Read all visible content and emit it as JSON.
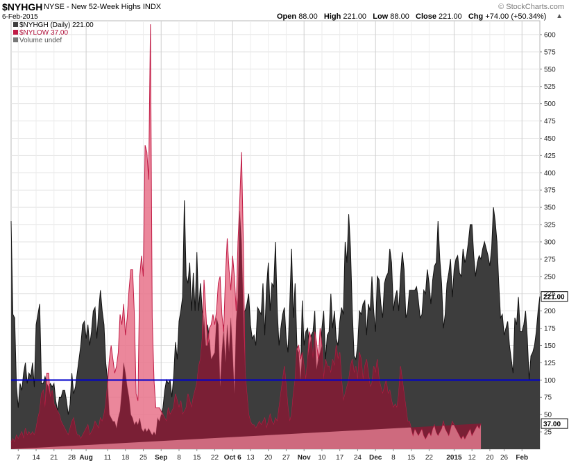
{
  "header": {
    "symbol": "$NYHGH",
    "name": "NYSE - New 52-Week Highs",
    "exchange": "INDX",
    "date": "6-Feb-2015",
    "brand": "© StockCharts.com",
    "open_label": "Open",
    "open": "88.00",
    "high_label": "High",
    "high": "221.00",
    "low_label": "Low",
    "low": "88.00",
    "close_label": "Close",
    "close": "221.00",
    "chg_label": "Chg",
    "chg": "+74.00 (+50.34%)",
    "chevron": "▲"
  },
  "legend": {
    "nyhgh": "$NYHGH (Daily) 221.00",
    "nylow": "$NYLOW 37.00",
    "volume": "Volume undef"
  },
  "chart_data": {
    "type": "area",
    "y_ticks": [
      25,
      50,
      75,
      100,
      125,
      150,
      175,
      200,
      225,
      250,
      275,
      300,
      325,
      350,
      375,
      400,
      425,
      450,
      475,
      500,
      525,
      550,
      575,
      600
    ],
    "ylim": [
      0,
      620
    ],
    "y_axis_position": "right",
    "grid": true,
    "x_ticks": [
      "7",
      "14",
      "21",
      "28",
      "Aug",
      "11",
      "18",
      "25",
      "Sep",
      "8",
      "15",
      "22",
      "Oct 6",
      "13",
      "20",
      "27",
      "Nov",
      "10",
      "17",
      "24",
      "Dec",
      "8",
      "15",
      "22",
      "2015",
      "12",
      "20",
      "26",
      "Feb"
    ],
    "x_tick_bold": [
      "Aug",
      "Sep",
      "Oct 6",
      "Nov",
      "Dec",
      "2015",
      "Feb"
    ],
    "x_tick_index": [
      2,
      7,
      12,
      17,
      21,
      27,
      32,
      37,
      42,
      47,
      52,
      57,
      62,
      67,
      72,
      77,
      82,
      87,
      92,
      97,
      102,
      107,
      112,
      117,
      124,
      129,
      134,
      138,
      143
    ],
    "horizontal_line": {
      "value": 100,
      "color": "#0000cc"
    },
    "last_value_tags": [
      {
        "value": 221,
        "label": "221.00"
      },
      {
        "value": 37,
        "label": "37.00"
      }
    ],
    "series": [
      {
        "name": "$NYHGH",
        "color": "#3d3d3d",
        "line": "#111111",
        "values": [
          330,
          195,
          190,
          90,
          60,
          95,
          85,
          110,
          125,
          95,
          110,
          105,
          125,
          90,
          180,
          195,
          210,
          95,
          95,
          105,
          95,
          90,
          95,
          90,
          95,
          70,
          55,
          75,
          75,
          85,
          85,
          70,
          50,
          65,
          110,
          80,
          90,
          110,
          130,
          150,
          180,
          185,
          160,
          180,
          150,
          170,
          200,
          205,
          160,
          200,
          230,
          200,
          180,
          125,
          100,
          50,
          45,
          40,
          40,
          30,
          45,
          55,
          85,
          125,
          110,
          90,
          75,
          50,
          45,
          35,
          40,
          35,
          45,
          30,
          25,
          30,
          25,
          30,
          25,
          20,
          25,
          20,
          45,
          40,
          50,
          60,
          85,
          100,
          95,
          100,
          75,
          105,
          155,
          130,
          185,
          200,
          220,
          360,
          250,
          240,
          270,
          200,
          255,
          200,
          285,
          200,
          240,
          200,
          190,
          150,
          180,
          160,
          130,
          135,
          140,
          190,
          180,
          90,
          140,
          180,
          125,
          180,
          140,
          190,
          140,
          80,
          185,
          220,
          345,
          300,
          200,
          200,
          210,
          225,
          180,
          160,
          165,
          150,
          205,
          200,
          195,
          240,
          165,
          235,
          270,
          200,
          240,
          235,
          300,
          200,
          150,
          175,
          195,
          205,
          160,
          140,
          210,
          290,
          190,
          240,
          150,
          140,
          100,
          215,
          150,
          170,
          175,
          150,
          165,
          170,
          200,
          115,
          135,
          140,
          175,
          200,
          130,
          165,
          170,
          225,
          175,
          200,
          160,
          150,
          185,
          205,
          195,
          300,
          270,
          340,
          290,
          200,
          135,
          130,
          150,
          200,
          195,
          210,
          215,
          165,
          210,
          200,
          250,
          200,
          170,
          250,
          245,
          210,
          190,
          240,
          250,
          255,
          290,
          270,
          200,
          220,
          230,
          200,
          250,
          285,
          260,
          190,
          200,
          230,
          230,
          230,
          230,
          235,
          215,
          190,
          195,
          230,
          225,
          260,
          240,
          210,
          245,
          265,
          270,
          330,
          275,
          240,
          175,
          195,
          240,
          255,
          275,
          220,
          260,
          275,
          280,
          255,
          250,
          290,
          270,
          280,
          300,
          325,
          325,
          280,
          250,
          270,
          280,
          275,
          290,
          300,
          290,
          280,
          265,
          290,
          350,
          330,
          300,
          240,
          190,
          195,
          165,
          175,
          185,
          150,
          130,
          110,
          190,
          180,
          220,
          170,
          170,
          180,
          200,
          160,
          100,
          135,
          140,
          150,
          170,
          200,
          221
        ]
      },
      {
        "name": "$NYLOW",
        "color": "#e8728a",
        "line": "#c01b45",
        "values": [
          10,
          15,
          10,
          20,
          15,
          20,
          25,
          15,
          30,
          20,
          25,
          20,
          25,
          20,
          30,
          45,
          55,
          80,
          85,
          60,
          110,
          110,
          75,
          85,
          65,
          60,
          55,
          50,
          40,
          35,
          30,
          25,
          20,
          30,
          40,
          45,
          30,
          20,
          20,
          15,
          20,
          25,
          30,
          35,
          20,
          25,
          30,
          40,
          35,
          30,
          45,
          40,
          50,
          65,
          95,
          130,
          150,
          130,
          110,
          120,
          140,
          195,
          180,
          210,
          165,
          190,
          230,
          260,
          260,
          195,
          80,
          70,
          250,
          280,
          250,
          440,
          430,
          390,
          615,
          190,
          100,
          60,
          60,
          60,
          55,
          50,
          45,
          40,
          60,
          50,
          55,
          60,
          80,
          70,
          60,
          70,
          50,
          55,
          60,
          80,
          70,
          60,
          75,
          85,
          95,
          120,
          130,
          160,
          245,
          200,
          150,
          175,
          180,
          195,
          180,
          200,
          240,
          250,
          195,
          170,
          250,
          305,
          260,
          230,
          280,
          250,
          200,
          300,
          360,
          430,
          300,
          110,
          80,
          50,
          40,
          35,
          35,
          30,
          35,
          40,
          35,
          40,
          45,
          30,
          40,
          50,
          40,
          35,
          45,
          40,
          60,
          80,
          100,
          120,
          90,
          60,
          40,
          50,
          80,
          100,
          145,
          150,
          130,
          140,
          120,
          100,
          130,
          170,
          160,
          130,
          170,
          155,
          130,
          175,
          150,
          100,
          130,
          120,
          120,
          110,
          130,
          120,
          150,
          130,
          140,
          100,
          70,
          80,
          90,
          100,
          120,
          130,
          110,
          120,
          100,
          140,
          130,
          100,
          120,
          130,
          110,
          90,
          95,
          120,
          110,
          130,
          100,
          90,
          80,
          90,
          100,
          80,
          85,
          70,
          60,
          65,
          60,
          80,
          120,
          100,
          80,
          60,
          40,
          40,
          30,
          20,
          30,
          25,
          20,
          25,
          30,
          20,
          15,
          20,
          25,
          20,
          30,
          35,
          25,
          20,
          25,
          30,
          40,
          30,
          25,
          20,
          30,
          40,
          35,
          30,
          25,
          20,
          15,
          20,
          15,
          20,
          25,
          30,
          20,
          25,
          30,
          35,
          30,
          37
        ]
      }
    ]
  }
}
